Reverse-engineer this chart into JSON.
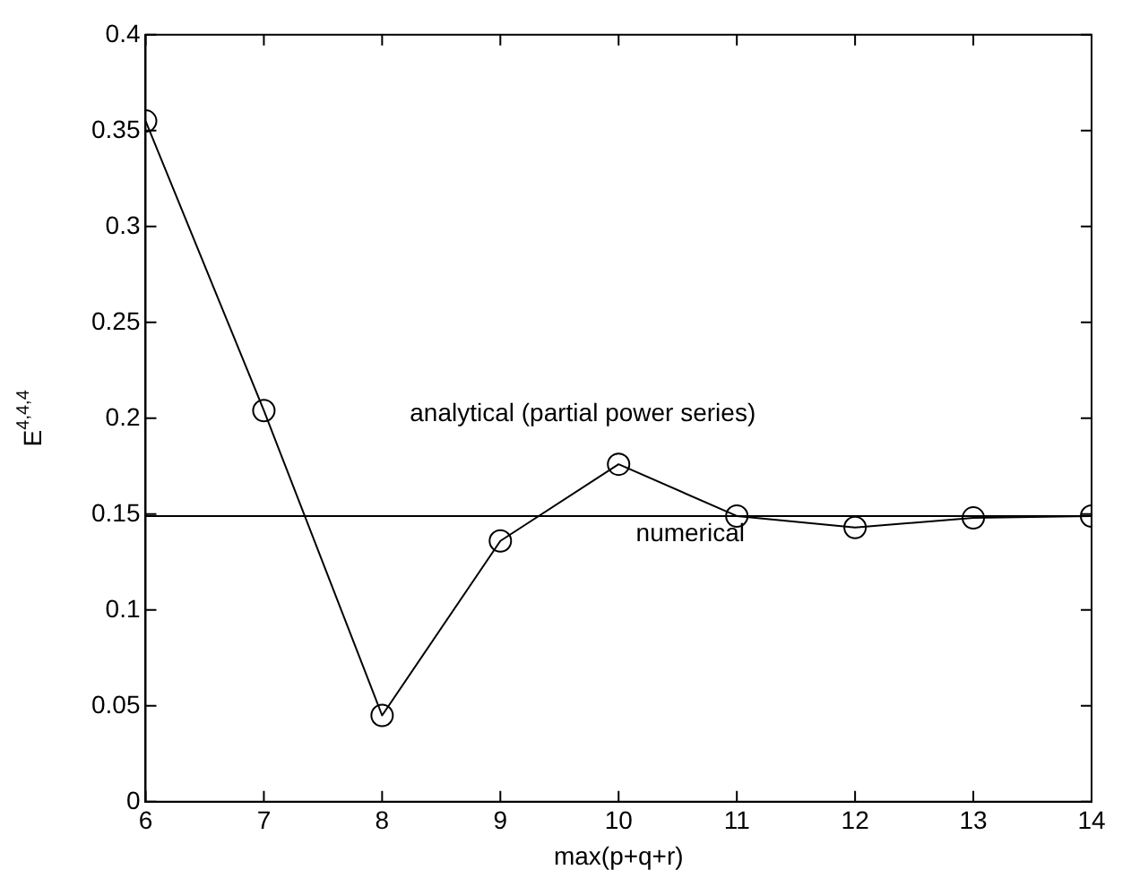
{
  "chart_data": {
    "type": "line",
    "xlabel": "max(p+q+r)",
    "ylabel": "E$^{4,4,4}$",
    "x": [
      6,
      7,
      8,
      9,
      10,
      11,
      12,
      13,
      14
    ],
    "series": [
      {
        "name": "analytical (partial power series)",
        "color": "#000000",
        "marker": "circle",
        "values": [
          0.355,
          0.204,
          0.045,
          0.136,
          0.176,
          0.149,
          0.143,
          0.148,
          0.149
        ]
      },
      {
        "name": "numerical",
        "color": "#000000",
        "marker": "none",
        "x": [
          6,
          14
        ],
        "values": [
          0.149,
          0.149
        ]
      }
    ],
    "xlim": [
      6,
      14
    ],
    "xticks": [
      6,
      7,
      8,
      9,
      10,
      11,
      12,
      13,
      14
    ],
    "ylim": [
      0,
      0.4
    ],
    "yticks": [
      0,
      0.05,
      0.1,
      0.15,
      0.2,
      0.25,
      0.3,
      0.35,
      0.4
    ],
    "grid": false,
    "legend": false,
    "line_style": "solid"
  }
}
